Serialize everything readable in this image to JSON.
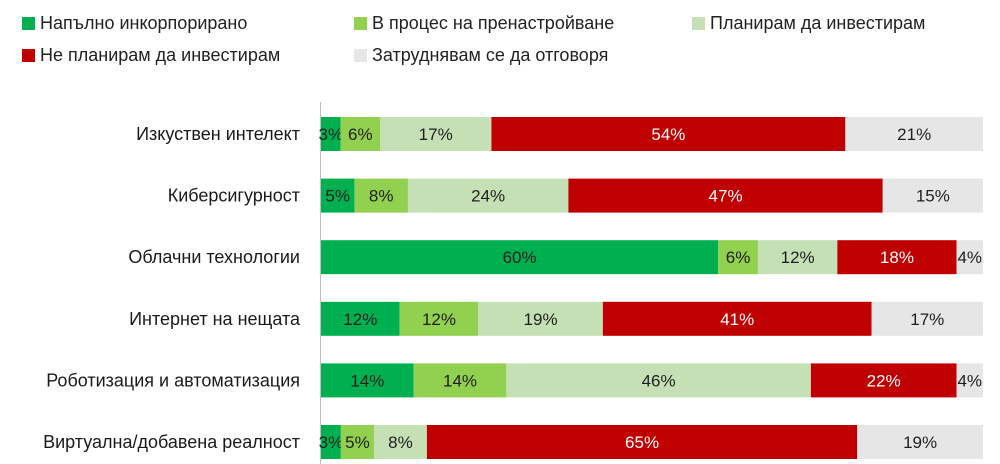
{
  "chart_data": {
    "type": "bar",
    "orientation": "horizontal",
    "stacked": true,
    "title": "",
    "xlabel": "",
    "ylabel": "",
    "categories": [
      "Изкуствен интелект",
      "Киберсигурност",
      "Облачни технологии",
      "Интернет на нещата",
      "Роботизация и автоматизация",
      "Виртуална/добавена реалност"
    ],
    "series": [
      {
        "name": "Напълно инкорпорирано",
        "color": "#00b050",
        "values": [
          3,
          5,
          60,
          12,
          14,
          3
        ],
        "labels": [
          "3%",
          "5%",
          "60%",
          "12%",
          "14%",
          "3%"
        ]
      },
      {
        "name": "В процес на пренастройване",
        "color": "#92d050",
        "values": [
          6,
          8,
          6,
          12,
          14,
          5
        ],
        "labels": [
          "6%",
          "8%",
          "6%",
          "12%",
          "14%",
          "5%"
        ]
      },
      {
        "name": "Планирам да инвестирам",
        "color": "#c5e0b4",
        "values": [
          17,
          24,
          12,
          19,
          46,
          8
        ],
        "labels": [
          "17%",
          "24%",
          "12%",
          "19%",
          "46%",
          "8%"
        ]
      },
      {
        "name": "Не планирам да инвестирам",
        "color": "#c00000",
        "values": [
          54,
          47,
          18,
          41,
          22,
          65
        ],
        "labels": [
          "54%",
          "47%",
          "18%",
          "41%",
          "22%",
          "65%"
        ]
      },
      {
        "name": "Затруднявам се да отговоря",
        "color": "#e7e6e6",
        "values": [
          21,
          15,
          4,
          17,
          4,
          19
        ],
        "labels": [
          "21%",
          "15%",
          "4%",
          "17%",
          "4%",
          "19%"
        ]
      }
    ],
    "xlim": [
      0,
      100
    ],
    "grid": false,
    "legend_position": "top"
  }
}
